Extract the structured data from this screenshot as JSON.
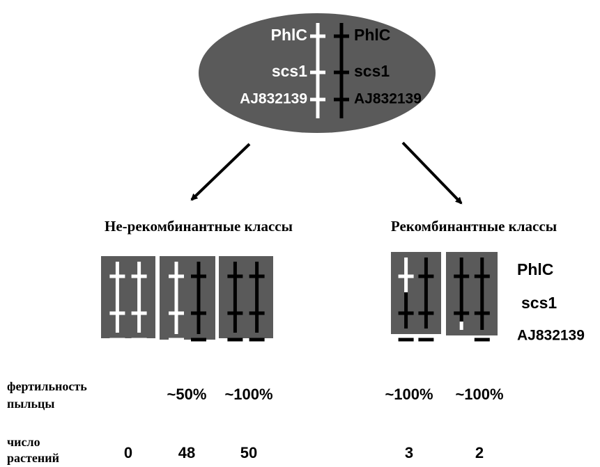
{
  "markers": [
    "PhlC",
    "scs1",
    "AJ832139"
  ],
  "groups": [
    {
      "title": "Не-рекомбинантные классы"
    },
    {
      "title": "Рекомбинантные классы"
    }
  ],
  "fertility": {
    "label": [
      "фертильность",
      "пыльцы"
    ],
    "values": [
      "~50%",
      "~100%",
      "~100%",
      "~100%"
    ]
  },
  "plants": {
    "label": [
      "число",
      "растений"
    ],
    "values": [
      0,
      48,
      50,
      3,
      2
    ]
  }
}
